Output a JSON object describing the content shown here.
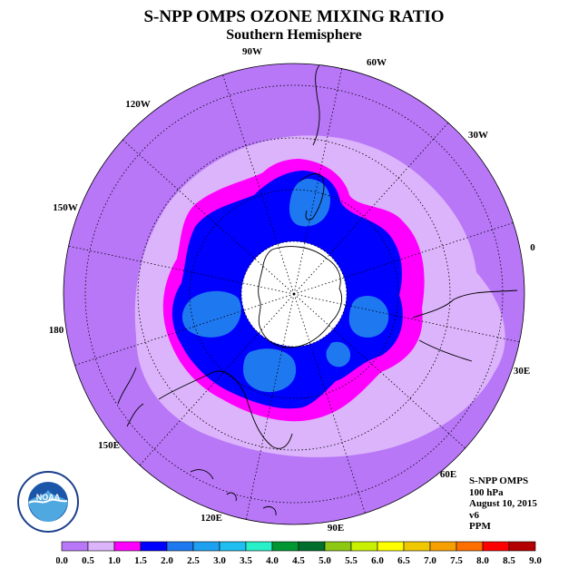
{
  "title": "S-NPP OMPS OZONE MIXING RATIO",
  "subtitle": "Southern Hemisphere",
  "longitude_labels": [
    "90W",
    "60W",
    "30W",
    "0",
    "30E",
    "60E",
    "90E",
    "120E",
    "150E",
    "180",
    "150W",
    "120W"
  ],
  "info": {
    "instrument": "S-NPP OMPS",
    "level": "100 hPa",
    "date": "August 10, 2015",
    "version": "v6",
    "units": "PPM"
  },
  "logo_text": "NOAA",
  "colorbar": {
    "ticks": [
      "0.0",
      "0.5",
      "1.0",
      "1.5",
      "2.0",
      "2.5",
      "3.0",
      "3.5",
      "4.0",
      "4.5",
      "5.0",
      "5.5",
      "6.0",
      "6.5",
      "7.0",
      "7.5",
      "8.0",
      "8.5",
      "9.0"
    ],
    "colors": [
      "#b877f7",
      "#dcb4fb",
      "#ff00ff",
      "#0000ff",
      "#1e78f0",
      "#1ea0f0",
      "#1ebef0",
      "#28f0c8",
      "#009632",
      "#006e2d",
      "#8cc814",
      "#c8f000",
      "#ffff00",
      "#f0c800",
      "#f5a000",
      "#ff6e00",
      "#ff0000",
      "#b40000"
    ]
  },
  "contour_colors": {
    "lt05": "#b877f7",
    "lt10": "#dcb4fb",
    "lt15": "#ff00ff",
    "lt20": "#0000ff",
    "lt25": "#1e78f0",
    "nodata": "#ffffff"
  }
}
